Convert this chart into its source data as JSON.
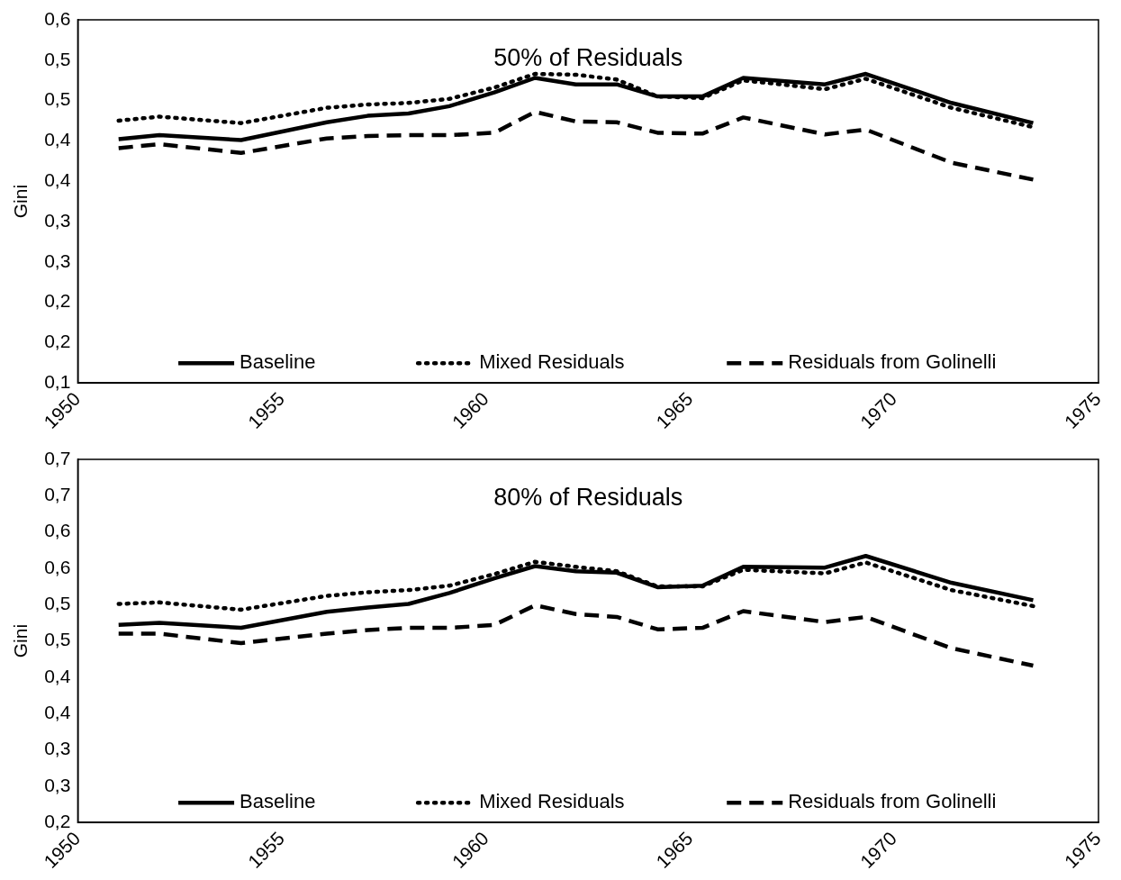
{
  "chart_data": [
    {
      "type": "line",
      "title": "50% of Residuals",
      "ylabel": "Gini",
      "legend": "bottom",
      "grid": false,
      "marker": "none",
      "xlim": [
        1950,
        1975
      ],
      "xticks": [
        1950,
        1955,
        1960,
        1965,
        1970,
        1975
      ],
      "ylim": [
        0.1,
        0.55
      ],
      "yticks": [
        {
          "value": 0.1,
          "label": "0,1"
        },
        {
          "value": 0.15,
          "label": "0,2"
        },
        {
          "value": 0.2,
          "label": "0,2"
        },
        {
          "value": 0.25,
          "label": "0,3"
        },
        {
          "value": 0.3,
          "label": "0,3"
        },
        {
          "value": 0.35,
          "label": "0,4"
        },
        {
          "value": 0.4,
          "label": "0,4"
        },
        {
          "value": 0.45,
          "label": "0,5"
        },
        {
          "value": 0.5,
          "label": "0,5"
        },
        {
          "value": 0.55,
          "label": "0,6"
        }
      ],
      "x": [
        1951,
        1952,
        1954,
        1956.1,
        1957.1,
        1958.1,
        1959.1,
        1960.2,
        1961.2,
        1962.2,
        1963.2,
        1964.2,
        1965.3,
        1966.3,
        1968.3,
        1969.3,
        1971.4,
        1973.4
      ],
      "series": [
        {
          "name": "Baseline",
          "color": "#000000",
          "line_style": "solid",
          "values": [
            0.402,
            0.407,
            0.401,
            0.423,
            0.431,
            0.434,
            0.443,
            0.46,
            0.478,
            0.47,
            0.47,
            0.455,
            0.455,
            0.478,
            0.47,
            0.483,
            0.447,
            0.422
          ]
        },
        {
          "name": "Mixed Residuals",
          "color": "#000000",
          "line_style": "dotted",
          "values": [
            0.425,
            0.43,
            0.422,
            0.441,
            0.445,
            0.447,
            0.452,
            0.466,
            0.483,
            0.482,
            0.476,
            0.455,
            0.453,
            0.475,
            0.464,
            0.477,
            0.441,
            0.417
          ]
        },
        {
          "name": "Residuals from Golinelli",
          "color": "#000000",
          "line_style": "dashed",
          "values": [
            0.391,
            0.396,
            0.385,
            0.403,
            0.406,
            0.407,
            0.407,
            0.41,
            0.436,
            0.424,
            0.423,
            0.41,
            0.409,
            0.429,
            0.408,
            0.414,
            0.373,
            0.352
          ]
        }
      ]
    },
    {
      "type": "line",
      "title": "80% of Residuals",
      "ylabel": "Gini",
      "legend": "bottom",
      "grid": false,
      "marker": "none",
      "xlim": [
        1950,
        1975
      ],
      "xticks": [
        1950,
        1955,
        1960,
        1965,
        1970,
        1975
      ],
      "ylim": [
        0.2,
        0.7
      ],
      "yticks": [
        {
          "value": 0.2,
          "label": "0,2"
        },
        {
          "value": 0.25,
          "label": "0,3"
        },
        {
          "value": 0.3,
          "label": "0,3"
        },
        {
          "value": 0.35,
          "label": "0,4"
        },
        {
          "value": 0.4,
          "label": "0,4"
        },
        {
          "value": 0.45,
          "label": "0,5"
        },
        {
          "value": 0.5,
          "label": "0,5"
        },
        {
          "value": 0.55,
          "label": "0,6"
        },
        {
          "value": 0.6,
          "label": "0,6"
        },
        {
          "value": 0.65,
          "label": "0,7"
        },
        {
          "value": 0.7,
          "label": "0,7"
        }
      ],
      "x": [
        1951,
        1952,
        1954,
        1956.1,
        1957.1,
        1958.1,
        1959.1,
        1960.2,
        1961.2,
        1962.2,
        1963.2,
        1964.2,
        1965.3,
        1966.3,
        1968.3,
        1969.3,
        1971.4,
        1973.4
      ],
      "series": [
        {
          "name": "Baseline",
          "color": "#000000",
          "line_style": "solid",
          "values": [
            0.472,
            0.475,
            0.468,
            0.49,
            0.496,
            0.501,
            0.516,
            0.536,
            0.553,
            0.546,
            0.544,
            0.524,
            0.526,
            0.552,
            0.551,
            0.567,
            0.53,
            0.506
          ]
        },
        {
          "name": "Mixed Residuals",
          "color": "#000000",
          "line_style": "dotted",
          "values": [
            0.501,
            0.503,
            0.493,
            0.512,
            0.517,
            0.52,
            0.526,
            0.542,
            0.559,
            0.552,
            0.546,
            0.525,
            0.525,
            0.548,
            0.543,
            0.558,
            0.52,
            0.498
          ]
        },
        {
          "name": "Residuals from Golinelli",
          "color": "#000000",
          "line_style": "dashed",
          "values": [
            0.46,
            0.46,
            0.447,
            0.46,
            0.465,
            0.468,
            0.468,
            0.472,
            0.499,
            0.487,
            0.483,
            0.466,
            0.468,
            0.491,
            0.476,
            0.483,
            0.44,
            0.416
          ]
        }
      ]
    }
  ]
}
